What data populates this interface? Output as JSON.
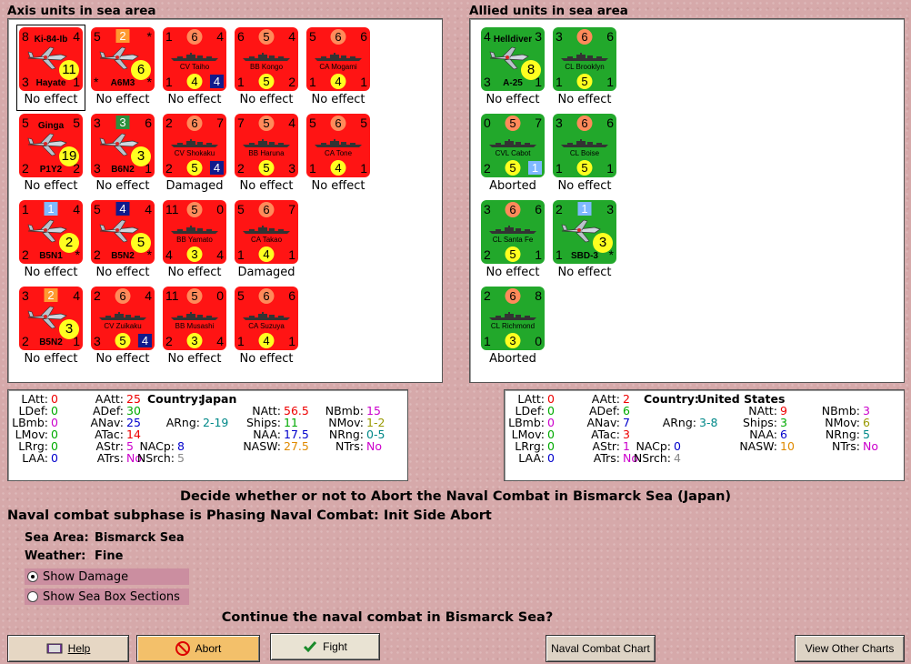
{
  "axis_title": "Axis units in sea area",
  "allied_title": "Allied units in sea area",
  "colors": {
    "axis_counter": "#ff1414",
    "allied_counter": "#22a82b",
    "background": "#d6a9aa"
  },
  "axis_units": [
    {
      "kind": "plane",
      "tl": "8",
      "tr": "4",
      "name_top": "Ki-84-Ib",
      "name_bottom": "Hayate",
      "bl": "3",
      "br": "1",
      "big": "11",
      "status": "No effect"
    },
    {
      "kind": "plane",
      "tl": "5",
      "tc": "2",
      "tc_style": "sq-orange",
      "tr": "*",
      "name_bottom": "A6M3",
      "bl": "*",
      "br": "*",
      "big": "6",
      "status": "No effect"
    },
    {
      "kind": "ship",
      "tl": "1",
      "tc": "6",
      "tr": "4",
      "name": "CV Taiho",
      "bl": "1",
      "bc": "4",
      "br": "4",
      "br_style": "sq-navy",
      "status": "No effect"
    },
    {
      "kind": "ship",
      "tl": "6",
      "tc": "5",
      "tr": "4",
      "name": "BB Kongo",
      "bl": "1",
      "bc": "5",
      "br": "2",
      "status": "No effect"
    },
    {
      "kind": "ship",
      "tl": "5",
      "tc": "6",
      "tr": "6",
      "name": "CA Mogami",
      "bl": "1",
      "bc": "4",
      "br": "1",
      "status": "No effect"
    },
    {
      "kind": "plane",
      "tl": "5",
      "tr": "5",
      "name_top": "Ginga",
      "name_bottom": "P1Y2",
      "bl": "2",
      "br": "2",
      "big": "19",
      "status": "No effect"
    },
    {
      "kind": "plane",
      "tl": "3",
      "tc": "3",
      "tc_style": "sq-green",
      "tr": "6",
      "name_bottom": "B6N2",
      "bl": "3",
      "br": "1",
      "big": "3",
      "status": "No effect"
    },
    {
      "kind": "ship",
      "tl": "2",
      "tc": "6",
      "tr": "7",
      "name": "CV Shokaku",
      "bl": "2",
      "bc": "5",
      "br": "4",
      "br_style": "sq-navy",
      "status": "Damaged"
    },
    {
      "kind": "ship",
      "tl": "7",
      "tc": "5",
      "tr": "4",
      "name": "BB Haruna",
      "bl": "2",
      "bc": "5",
      "br": "3",
      "status": "No effect"
    },
    {
      "kind": "ship",
      "tl": "5",
      "tc": "6",
      "tr": "5",
      "name": "CA Tone",
      "bl": "1",
      "bc": "4",
      "br": "1",
      "status": "No effect"
    },
    {
      "kind": "plane",
      "tl": "1",
      "tc": "1",
      "tc_style": "sq-lblue",
      "tr": "4",
      "name_bottom": "B5N1",
      "bl": "2",
      "br": "*",
      "big": "2",
      "status": "No effect"
    },
    {
      "kind": "plane",
      "tl": "5",
      "tc": "4",
      "tc_style": "sq-navy",
      "tr": "4",
      "name_bottom": "B5N2",
      "bl": "2",
      "br": "*",
      "big": "5",
      "status": "No effect"
    },
    {
      "kind": "ship",
      "tl": "11",
      "tc": "5",
      "tr": "0",
      "name": "BB Yamato",
      "bl": "4",
      "bc": "3",
      "br": "4",
      "status": "No effect"
    },
    {
      "kind": "ship",
      "tl": "5",
      "tc": "6",
      "tr": "7",
      "name": "CA Takao",
      "bl": "1",
      "bc": "4",
      "br": "1",
      "status": "Damaged"
    },
    {
      "kind": "plane",
      "tl": "3",
      "tc": "2",
      "tc_style": "sq-orange",
      "tr": "4",
      "name_bottom": "B5N2",
      "bl": "2",
      "br": "1",
      "big": "3",
      "status": "No effect"
    },
    {
      "kind": "ship",
      "tl": "2",
      "tc": "6",
      "tr": "4",
      "name": "CV Zuikaku",
      "bl": "3",
      "bc": "5",
      "br": "4",
      "br_style": "sq-navy",
      "status": "No effect"
    },
    {
      "kind": "ship",
      "tl": "11",
      "tc": "5",
      "tr": "0",
      "name": "BB Musashi",
      "bl": "2",
      "bc": "3",
      "br": "4",
      "status": "No effect"
    },
    {
      "kind": "ship",
      "tl": "5",
      "tc": "6",
      "tr": "6",
      "name": "CA Suzuya",
      "bl": "1",
      "bc": "4",
      "br": "1",
      "status": "No effect"
    }
  ],
  "allied_units": [
    {
      "kind": "plane",
      "tl": "4",
      "tr": "3",
      "name_top": "Helldiver",
      "name_bottom": "A-25",
      "bl": "3",
      "br": "1",
      "big": "8",
      "status": "No effect"
    },
    {
      "kind": "ship",
      "tl": "3",
      "tc": "6",
      "tr": "6",
      "name": "CL Brooklyn",
      "bl": "1",
      "bc": "5",
      "br": "1",
      "status": "No effect"
    },
    {
      "kind": "ship",
      "tl": "0",
      "tc": "5",
      "tr": "7",
      "name": "CVL Cabot",
      "bl": "2",
      "bc": "5",
      "br": "1",
      "br_style": "sq-lblue",
      "status": "Aborted"
    },
    {
      "kind": "ship",
      "tl": "3",
      "tc": "6",
      "tr": "6",
      "name": "CL Boise",
      "bl": "1",
      "bc": "5",
      "br": "1",
      "status": "No effect"
    },
    {
      "kind": "ship",
      "tl": "3",
      "tc": "6",
      "tr": "6",
      "name": "CL Santa Fe",
      "bl": "2",
      "bc": "5",
      "br": "1",
      "status": "No effect"
    },
    {
      "kind": "plane",
      "tl": "2",
      "tc": "1",
      "tc_style": "sq-lblue",
      "tr": "3",
      "name_bottom": "SBD-3",
      "bl": "1",
      "br": "*",
      "big": "3",
      "status": "No effect"
    },
    {
      "kind": "ship",
      "tl": "2",
      "tc": "6",
      "tr": "8",
      "name": "CL Richmond",
      "bl": "1",
      "bc": "3",
      "br": "0",
      "status": "Aborted"
    }
  ],
  "axis_stats": {
    "LAtt": "0",
    "LDef": "0",
    "LBmb": "0",
    "LMov": "0",
    "LRrg": "0",
    "LAA": "0",
    "AAtt": "25",
    "ADef": "30",
    "ANav": "25",
    "ATac": "14",
    "AStr": "5",
    "ATrs": "No",
    "country_label": "Country:",
    "country": "Japan",
    "ARng": "2-19",
    "NACp": "8",
    "NSrch": "5",
    "NAtt": "56.5",
    "Ships": "11",
    "NAA": "17.5",
    "NASW": "27.5",
    "NBmb": "15",
    "NMov": "1-2",
    "NRng": "0-5",
    "NTrs": "No"
  },
  "allied_stats": {
    "LAtt": "0",
    "LDef": "0",
    "LBmb": "0",
    "LMov": "0",
    "LRrg": "0",
    "LAA": "0",
    "AAtt": "2",
    "ADef": "6",
    "ANav": "7",
    "ATac": "3",
    "AStr": "1",
    "ATrs": "No",
    "country_label": "Country:",
    "country": "United States",
    "ARng": "3-8",
    "NACp": "0",
    "NSrch": "4",
    "NAtt": "9",
    "Ships": "3",
    "NAA": "6",
    "NASW": "10",
    "NBmb": "3",
    "NMov": "6",
    "NRng": "5",
    "NTrs": "No"
  },
  "prompt_decide": "Decide whether or not to Abort the Naval Combat in Bismarck Sea (Japan)",
  "subphase": "Naval combat subphase is Phasing Naval Combat: Init Side Abort",
  "sea_area_label": "Sea Area:",
  "sea_area": "Bismarck Sea",
  "weather_label": "Weather:",
  "weather": "Fine",
  "show_damage": "Show Damage",
  "show_sea_box": "Show Sea Box Sections",
  "continue_question": "Continue the naval combat in Bismarck Sea?",
  "buttons": {
    "help": "Help",
    "abort": "Abort",
    "fight": "Fight",
    "naval_chart": "Naval Combat Chart",
    "other_charts": "View Other Charts"
  }
}
